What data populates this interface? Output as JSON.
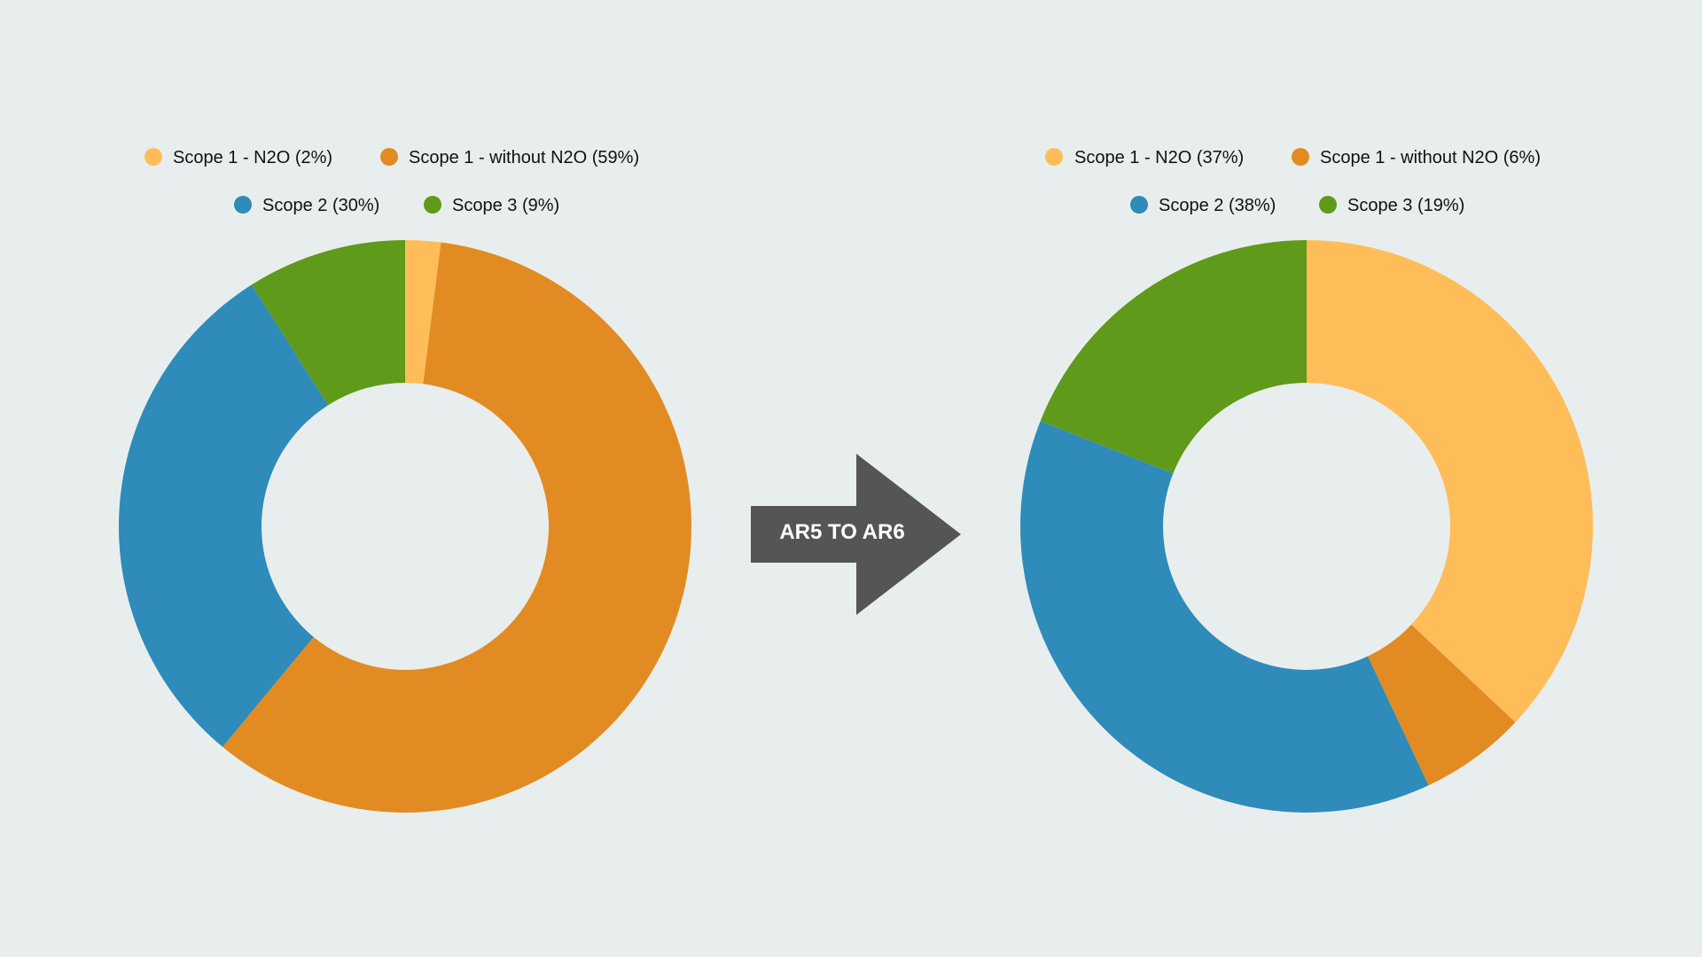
{
  "colors": {
    "background": "#e8eeed",
    "scope1_n2o": "#ffbd59",
    "scope1_without_n2o": "#e28b23",
    "scope2": "#2e8bba",
    "scope3": "#5f9a1a",
    "arrow": "#555558"
  },
  "arrow": {
    "label": "AR5 TO AR6"
  },
  "chart_data": [
    {
      "type": "pie",
      "style": "donut",
      "legend_placement": "top",
      "series": [
        {
          "name": "Scope 1 - N2O",
          "value": 2,
          "label": "Scope 1 - N2O (2%)",
          "color": "#ffbd59"
        },
        {
          "name": "Scope 1 - without N2O",
          "value": 59,
          "label": "Scope 1 - without N2O (59%)",
          "color": "#e28b23"
        },
        {
          "name": "Scope 2",
          "value": 30,
          "label": "Scope 2 (30%)",
          "color": "#2e8bba"
        },
        {
          "name": "Scope 3",
          "value": 9,
          "label": "Scope 3 (9%)",
          "color": "#5f9a1a"
        }
      ]
    },
    {
      "type": "pie",
      "style": "donut",
      "legend_placement": "top",
      "series": [
        {
          "name": "Scope 1 - N2O",
          "value": 37,
          "label": "Scope 1 - N2O (37%)",
          "color": "#ffbd59"
        },
        {
          "name": "Scope 1 - without N2O",
          "value": 6,
          "label": "Scope 1 - without N2O (6%)",
          "color": "#e28b23"
        },
        {
          "name": "Scope 2",
          "value": 38,
          "label": "Scope 2 (38%)",
          "color": "#2e8bba"
        },
        {
          "name": "Scope 3",
          "value": 19,
          "label": "Scope 3 (19%)",
          "color": "#5f9a1a"
        }
      ]
    }
  ]
}
